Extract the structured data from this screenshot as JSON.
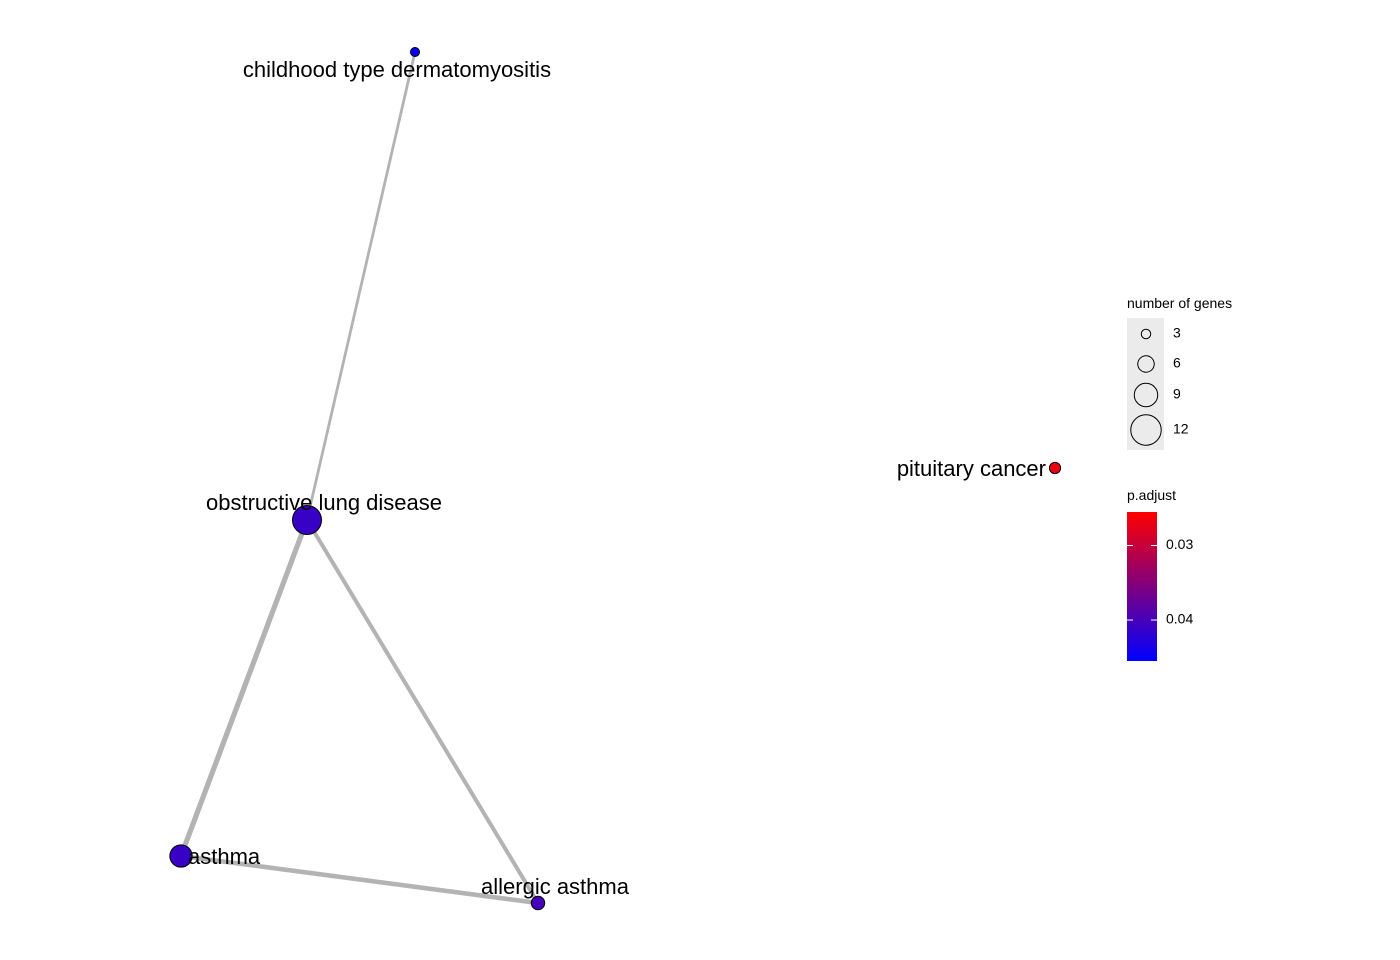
{
  "network": {
    "nodes": [
      {
        "id": "childhood",
        "label": "childhood type dermatomyositis",
        "genes": 3,
        "p_adjust": 0.045
      },
      {
        "id": "obstructive",
        "label": "obstructive lung disease",
        "genes": 12,
        "p_adjust": 0.041
      },
      {
        "id": "asthma",
        "label": "asthma",
        "genes": 9,
        "p_adjust": 0.041
      },
      {
        "id": "allergic",
        "label": "allergic asthma",
        "genes": 5,
        "p_adjust": 0.04
      },
      {
        "id": "pituitary",
        "label": "pituitary cancer",
        "genes": 4,
        "p_adjust": 0.027
      }
    ],
    "edges": [
      {
        "source": "childhood",
        "target": "obstructive",
        "weight": 1
      },
      {
        "source": "obstructive",
        "target": "asthma",
        "weight": 3
      },
      {
        "source": "obstructive",
        "target": "allergic",
        "weight": 2
      },
      {
        "source": "asthma",
        "target": "allergic",
        "weight": 2.5
      }
    ]
  },
  "legend": {
    "size": {
      "title": "number of genes",
      "items": [
        {
          "label": "3",
          "value": 3
        },
        {
          "label": "6",
          "value": 6
        },
        {
          "label": "9",
          "value": 9
        },
        {
          "label": "12",
          "value": 12
        }
      ]
    },
    "color": {
      "title": "p.adjust",
      "ticks": [
        {
          "label": "0.03",
          "value": 0.03
        },
        {
          "label": "0.04",
          "value": 0.04
        }
      ],
      "range": [
        0.0255,
        0.0455
      ],
      "low_color": "#0000FF",
      "high_color": "#FF0000"
    }
  },
  "colors": {
    "edge": "#B3B3B3",
    "legend_key_background": "#EBEBEB"
  }
}
